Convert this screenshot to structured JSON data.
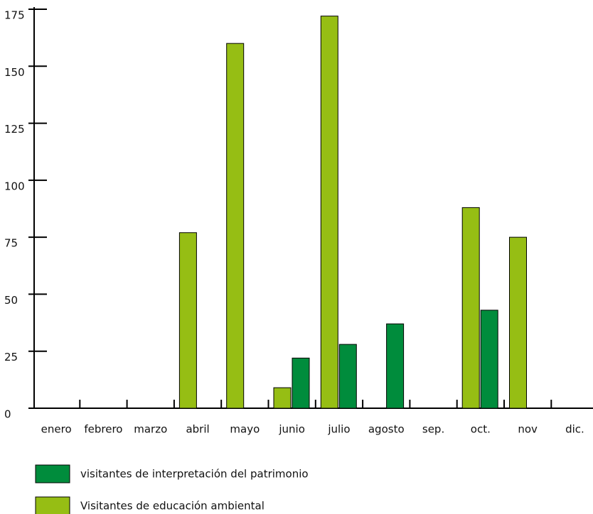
{
  "chart_data": {
    "type": "bar",
    "categories": [
      "enero",
      "febrero",
      "marzo",
      "abril",
      "mayo",
      "junio",
      "julio",
      "agosto",
      "sep.",
      "oct.",
      "nov",
      "dic."
    ],
    "series": [
      {
        "name": "visitantes de interpretación del patrimonio",
        "color": "#008c3c",
        "values": [
          null,
          null,
          null,
          null,
          null,
          22,
          28,
          37,
          null,
          43,
          null,
          null
        ]
      },
      {
        "name": "Visitantes de educación ambiental",
        "color": "#96be14",
        "values": [
          null,
          null,
          null,
          77,
          160,
          9,
          172,
          null,
          null,
          88,
          75,
          null
        ]
      }
    ],
    "ylim": [
      0,
      175
    ],
    "yticks": [
      0,
      25,
      50,
      75,
      100,
      125,
      150,
      175
    ]
  }
}
